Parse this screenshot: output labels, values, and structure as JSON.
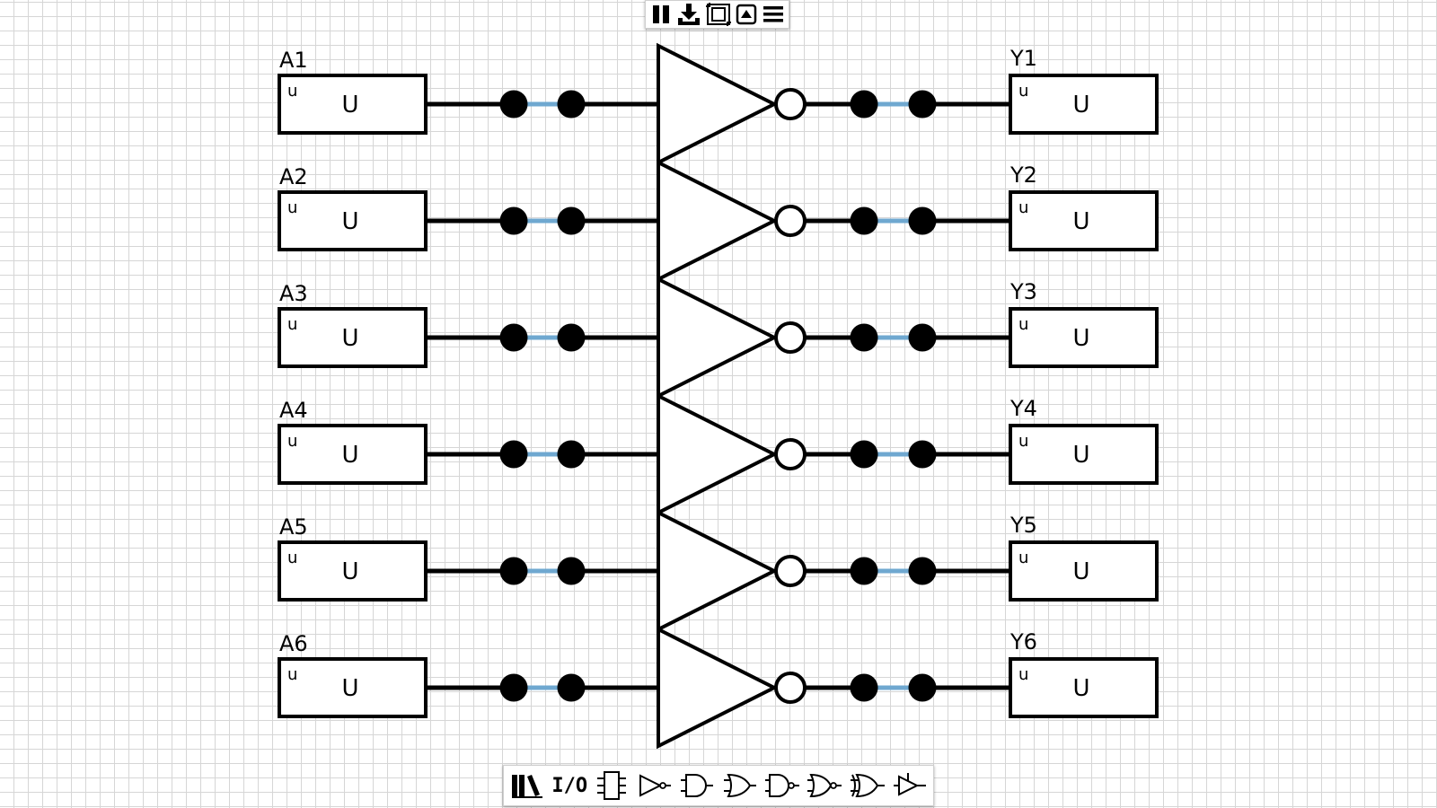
{
  "toolbar_top": {
    "buttons": [
      {
        "name": "pause-icon"
      },
      {
        "name": "download-icon"
      },
      {
        "name": "fit-screen-icon"
      },
      {
        "name": "triangle-box-icon"
      },
      {
        "name": "menu-icon"
      }
    ]
  },
  "circuit": {
    "gate_type": "NOT",
    "wire_color": "#000000",
    "link_color": "#6fa8d0",
    "inputs": [
      {
        "label": "A1",
        "mode": "u",
        "value": "U"
      },
      {
        "label": "A2",
        "mode": "u",
        "value": "U"
      },
      {
        "label": "A3",
        "mode": "u",
        "value": "U"
      },
      {
        "label": "A4",
        "mode": "u",
        "value": "U"
      },
      {
        "label": "A5",
        "mode": "u",
        "value": "U"
      },
      {
        "label": "A6",
        "mode": "u",
        "value": "U"
      }
    ],
    "outputs": [
      {
        "label": "Y1",
        "mode": "u",
        "value": "U"
      },
      {
        "label": "Y2",
        "mode": "u",
        "value": "U"
      },
      {
        "label": "Y3",
        "mode": "u",
        "value": "U"
      },
      {
        "label": "Y4",
        "mode": "u",
        "value": "U"
      },
      {
        "label": "Y5",
        "mode": "u",
        "value": "U"
      },
      {
        "label": "Y6",
        "mode": "u",
        "value": "U"
      }
    ]
  },
  "toolbar_bottom": {
    "io_label": "I/O",
    "buttons": [
      {
        "name": "library-icon"
      },
      {
        "name": "io-button"
      },
      {
        "name": "chip-icon"
      },
      {
        "name": "not-gate-icon"
      },
      {
        "name": "and-gate-icon"
      },
      {
        "name": "or-gate-icon"
      },
      {
        "name": "nand-gate-icon"
      },
      {
        "name": "nor-gate-icon"
      },
      {
        "name": "xor-gate-icon"
      },
      {
        "name": "buffer-gate-icon"
      }
    ]
  }
}
